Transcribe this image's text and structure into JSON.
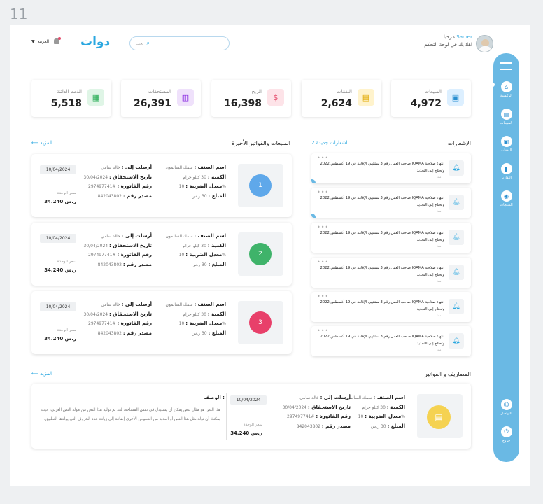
{
  "screen_number": "11",
  "header": {
    "language": "العربية",
    "logo": "دوات",
    "search_placeholder": "بحث",
    "greeting_prefix": "مرحبا",
    "user_name": "Samer",
    "welcome": "اهلا بك في لوحة التحكم"
  },
  "sidebar": {
    "items": [
      {
        "label": "الرئيسية",
        "icon": "home-icon"
      },
      {
        "label": "المبيعات",
        "icon": "receipt-icon"
      },
      {
        "label": "النفقات",
        "icon": "wallet-icon"
      },
      {
        "label": "التقارير",
        "icon": "chart-icon"
      },
      {
        "label": "المنتجات",
        "icon": "box-icon"
      }
    ],
    "bottom": [
      {
        "label": "التواصل",
        "icon": "contact-icon"
      },
      {
        "label": "خروج",
        "icon": "logout-icon"
      }
    ]
  },
  "stats": [
    {
      "label": "المبيعات",
      "value": "4,972",
      "color": "#2a8fd0",
      "bg": "#dcefff",
      "glyph": "▣"
    },
    {
      "label": "النفقات",
      "value": "2,624",
      "color": "#e0a800",
      "bg": "#fff3cc",
      "glyph": "▤"
    },
    {
      "label": "الربح",
      "value": "16,398",
      "color": "#e54b6b",
      "bg": "#fde3e8",
      "glyph": "$"
    },
    {
      "label": "المستحقات",
      "value": "26,391",
      "color": "#8a2be2",
      "bg": "#efe1fb",
      "glyph": "▥"
    },
    {
      "label": "الذمم الدائنة",
      "value": "5,518",
      "color": "#2eaf5a",
      "bg": "#dff5e6",
      "glyph": "▦"
    }
  ],
  "sales_section": {
    "title": "المبيعات والفواتير الأخيرة",
    "more": "المزيد"
  },
  "invoices": [
    {
      "num": "1",
      "color": "#5fa8ea",
      "item_label": "اسم الصنف :",
      "item_value": "سمك السالمون",
      "qty_label": "الكمية :",
      "qty_value": "30 كيلو جرام",
      "tax_label": "معدل الضريبة :",
      "tax_value": "10%",
      "amount_label": "المبلغ :",
      "amount_value": "30 ر.س",
      "to_label": "أرسلت إلى :",
      "to_value": "خالد سامي",
      "due_label": "تاريخ الاستحقاق :",
      "due_value": "30/04/2024",
      "invno_label": "رقم الفاتورة :",
      "invno_value": "#297497741",
      "src_label": "مصدر رقم :",
      "src_value": "842043802",
      "date": "10/04/2024",
      "unit_label": "سعر الوحدة",
      "unit_value": "34.240 ر.س"
    },
    {
      "num": "2",
      "color": "#3fb36a",
      "item_label": "اسم الصنف :",
      "item_value": "سمك السالمون",
      "qty_label": "الكمية :",
      "qty_value": "30 كيلو جرام",
      "tax_label": "معدل الضريبة :",
      "tax_value": "10%",
      "amount_label": "المبلغ :",
      "amount_value": "30 ر.س",
      "to_label": "أرسلت إلى :",
      "to_value": "خالد سامي",
      "due_label": "تاريخ الاستحقاق :",
      "due_value": "30/04/2024",
      "invno_label": "رقم الفاتورة :",
      "invno_value": "#297497741",
      "src_label": "مصدر رقم :",
      "src_value": "842043802",
      "date": "10/04/2024",
      "unit_label": "سعر الوحدة",
      "unit_value": "34.240 ر.س"
    },
    {
      "num": "3",
      "color": "#e8406a",
      "item_label": "اسم الصنف :",
      "item_value": "سمك السالمون",
      "qty_label": "الكمية :",
      "qty_value": "30 كيلو جرام",
      "tax_label": "معدل الضريبة :",
      "tax_value": "10%",
      "amount_label": "المبلغ :",
      "amount_value": "30 ر.س",
      "to_label": "أرسلت إلى :",
      "to_value": "خالد سامي",
      "due_label": "تاريخ الاستحقاق :",
      "due_value": "30/04/2024",
      "invno_label": "رقم الفاتورة :",
      "invno_value": "#297497741",
      "src_label": "مصدر رقم :",
      "src_value": "842043802",
      "date": "10/04/2024",
      "unit_label": "سعر الوحدة",
      "unit_value": "34.240 ر.س"
    }
  ],
  "notifications_section": {
    "title": "الإشعارات",
    "new_count": "2 اشعارات جديدة"
  },
  "notifications": [
    {
      "text": "انتهاء صلاحية IQAMA صاحب العمل رقم 3 ستنتهي الإقامة في 19 أغسطس 2022 وتحتاج إلى التجديد",
      "time": "منذ"
    },
    {
      "text": "انتهاء صلاحية IQAMA صاحب العمل رقم 3 ستنتهي الإقامة في 19 أغسطس 2022 وتحتاج إلى التجديد",
      "time": "منذ"
    },
    {
      "text": "انتهاء صلاحية IQAMA صاحب العمل رقم 3 ستنتهي الإقامة في 19 أغسطس 2022 وتحتاج إلى التجديد",
      "time": "منذ"
    },
    {
      "text": "انتهاء صلاحية IQAMA صاحب العمل رقم 3 ستنتهي الإقامة في 19 أغسطس 2022 وتحتاج إلى التجديد",
      "time": "منذ"
    },
    {
      "text": "انتهاء صلاحية IQAMA صاحب العمل رقم 3 ستنتهي الإقامة في 19 أغسطس 2022 وتحتاج إلى التجديد",
      "time": "منذ"
    },
    {
      "text": "انتهاء صلاحية IQAMA صاحب العمل رقم 3 ستنتهي الإقامة في 19 أغسطس 2022 وتحتاج إلى التجديد",
      "time": "منذ"
    }
  ],
  "expenses_section": {
    "title": "المصاريف و الفواتير",
    "more": "المزيد"
  },
  "expense": {
    "item_label": "اسم الصنف :",
    "item_value": "سمك السالمون",
    "qty_label": "الكمية :",
    "qty_value": "30 كيلو جرام",
    "tax_label": "معدل الضريبة :",
    "tax_value": "10%",
    "amount_label": "المبلغ :",
    "amount_value": "30 ر.س",
    "to_label": "أرسلت إلى :",
    "to_value": "خالد سامي",
    "due_label": "تاريخ الاستحقاق :",
    "due_value": "30/04/2024",
    "invno_label": "رقم الفاتورة :",
    "invno_value": "#297497741",
    "src_label": "مصدر رقم :",
    "src_value": "842043802",
    "date": "10/04/2024",
    "unit_label": "سعر الوحدة",
    "unit_value": "34.240 ر.س",
    "desc_title": "الوصف :",
    "desc_text": "هذا النص هو مثال لنص يمكن أن يستبدل في نفس المساحة، لقد تم توليد هذا النص من مولد النص العربى، حيث يمكنك أن تولد مثل هذا النص أو العديد من النصوص الأخرى إضافة إلى زيادة عدد الحروف التى يولدها التطبيق."
  }
}
